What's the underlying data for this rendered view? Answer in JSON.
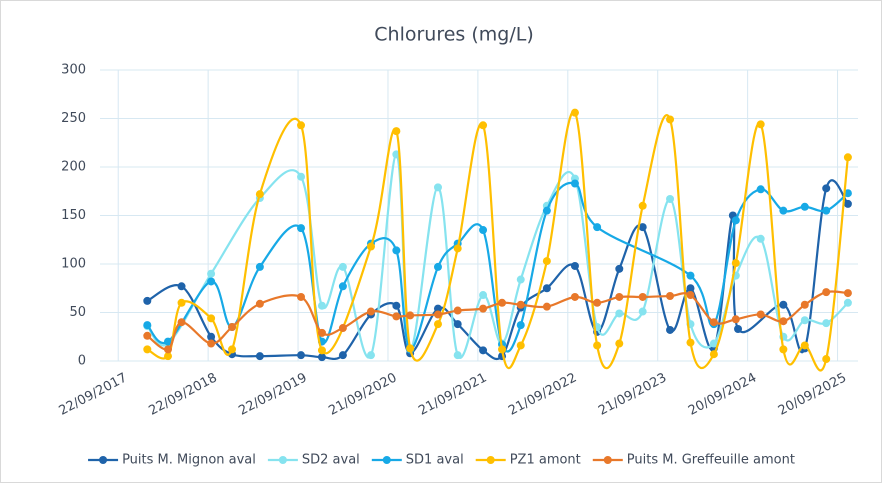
{
  "chart_data": {
    "type": "line",
    "title": "Chlorures (mg/L)",
    "xlim": [
      "10/07/2017",
      "12/12/2025"
    ],
    "xticks": [
      "22/09/2017",
      "22/09/2018",
      "22/09/2019",
      "21/09/2020",
      "21/09/2021",
      "21/09/2022",
      "21/09/2023",
      "20/09/2024",
      "20/09/2025"
    ],
    "ylim": [
      0,
      300
    ],
    "yticks": [
      0,
      50,
      100,
      150,
      200,
      250,
      300
    ],
    "grid": true,
    "legend": "bottom",
    "series": [
      {
        "name": "Puits M. Mignon aval",
        "color": "#1f63aa",
        "x": [
          "18/01/2018",
          "06/06/2018",
          "04/10/2018",
          "28/12/2018",
          "20/04/2019",
          "04/10/2019",
          "28/12/2019",
          "22/03/2020",
          "14/07/2020",
          "25/10/2020",
          "20/12/2020",
          "12/04/2021",
          "01/07/2021",
          "12/10/2021",
          "28/12/2021",
          "14/03/2022",
          "28/06/2022",
          "20/10/2022",
          "18/01/2023",
          "18/04/2023",
          "22/07/2023",
          "10/11/2023",
          "01/02/2024",
          "06/05/2024",
          "22/07/2024",
          "12/08/2024",
          "12/02/2025",
          "10/05/2025",
          "05/08/2025",
          "01/11/2025"
        ],
        "values": [
          62,
          77,
          25,
          7,
          5,
          6,
          4,
          6,
          48,
          57,
          8,
          54,
          38,
          11,
          5,
          55,
          75,
          98,
          30,
          95,
          138,
          32,
          75,
          13,
          150,
          33,
          58,
          13,
          178,
          162
        ]
      },
      {
        "name": "SD2 aval",
        "color": "#86e3ef",
        "x": [
          "18/01/2018",
          "12/04/2018",
          "04/10/2018",
          "20/04/2019",
          "04/10/2019",
          "28/12/2019",
          "22/03/2020",
          "14/07/2020",
          "25/10/2020",
          "20/12/2020",
          "12/04/2021",
          "01/07/2021",
          "12/10/2021",
          "28/12/2021",
          "14/03/2022",
          "28/06/2022",
          "20/10/2022",
          "18/01/2023",
          "18/04/2023",
          "22/07/2023",
          "10/11/2023",
          "01/02/2024",
          "06/05/2024",
          "03/08/2024",
          "12/11/2024",
          "12/02/2025",
          "10/05/2025",
          "05/08/2025",
          "01/11/2025"
        ],
        "values": [
          36,
          18,
          90,
          168,
          190,
          57,
          97,
          6,
          213,
          12,
          179,
          6,
          68,
          18,
          84,
          160,
          188,
          35,
          49,
          51,
          167,
          38,
          18,
          88,
          126,
          25,
          42,
          39,
          60
        ]
      },
      {
        "name": "SD1 aval",
        "color": "#17a9e6",
        "x": [
          "18/01/2018",
          "12/04/2018",
          "04/10/2018",
          "28/12/2018",
          "20/04/2019",
          "04/10/2019",
          "28/12/2019",
          "22/03/2020",
          "14/07/2020",
          "25/10/2020",
          "20/12/2020",
          "12/04/2021",
          "01/07/2021",
          "12/10/2021",
          "28/12/2021",
          "14/03/2022",
          "28/06/2022",
          "20/10/2022",
          "18/01/2023",
          "01/02/2024",
          "06/05/2024",
          "03/08/2024",
          "12/11/2024",
          "12/02/2025",
          "10/05/2025",
          "05/08/2025",
          "01/11/2025"
        ],
        "values": [
          37,
          20,
          82,
          35,
          97,
          137,
          20,
          77,
          121,
          114,
          12,
          97,
          121,
          135,
          17,
          37,
          155,
          183,
          138,
          88,
          38,
          145,
          177,
          155,
          159,
          155,
          173
        ]
      },
      {
        "name": "PZ1 amont",
        "color": "#ffbf00",
        "x": [
          "18/01/2018",
          "12/04/2018",
          "06/06/2018",
          "04/10/2018",
          "28/12/2018",
          "20/04/2019",
          "04/10/2019",
          "28/12/2019",
          "14/07/2020",
          "25/10/2020",
          "20/12/2020",
          "12/04/2021",
          "01/07/2021",
          "12/10/2021",
          "28/12/2021",
          "14/03/2022",
          "28/06/2022",
          "20/10/2022",
          "18/01/2023",
          "18/04/2023",
          "22/07/2023",
          "10/11/2023",
          "01/02/2024",
          "06/05/2024",
          "03/08/2024",
          "12/11/2024",
          "12/02/2025",
          "10/05/2025",
          "05/08/2025",
          "01/11/2025"
        ],
        "values": [
          12,
          5,
          60,
          44,
          12,
          172,
          243,
          11,
          118,
          237,
          13,
          38,
          116,
          243,
          12,
          16,
          103,
          256,
          16,
          18,
          160,
          249,
          19,
          7,
          101,
          244,
          12,
          16,
          2,
          210
        ]
      },
      {
        "name": "Puits M. Greffeuille amont",
        "color": "#e8782a",
        "x": [
          "18/01/2018",
          "12/04/2018",
          "06/06/2018",
          "04/10/2018",
          "28/12/2018",
          "20/04/2019",
          "04/10/2019",
          "28/12/2019",
          "22/03/2020",
          "14/07/2020",
          "25/10/2020",
          "20/12/2020",
          "12/04/2021",
          "01/07/2021",
          "12/10/2021",
          "28/12/2021",
          "14/03/2022",
          "28/06/2022",
          "20/10/2022",
          "18/01/2023",
          "18/04/2023",
          "22/07/2023",
          "10/11/2023",
          "01/02/2024",
          "06/05/2024",
          "03/08/2024",
          "12/11/2024",
          "12/02/2025",
          "10/05/2025",
          "05/08/2025",
          "01/11/2025"
        ],
        "values": [
          26,
          12,
          40,
          18,
          35,
          59,
          66,
          29,
          34,
          51,
          46,
          47,
          48,
          52,
          54,
          60,
          58,
          56,
          66,
          60,
          66,
          66,
          67,
          68,
          40,
          43,
          48,
          41,
          58,
          71,
          70
        ]
      }
    ]
  }
}
